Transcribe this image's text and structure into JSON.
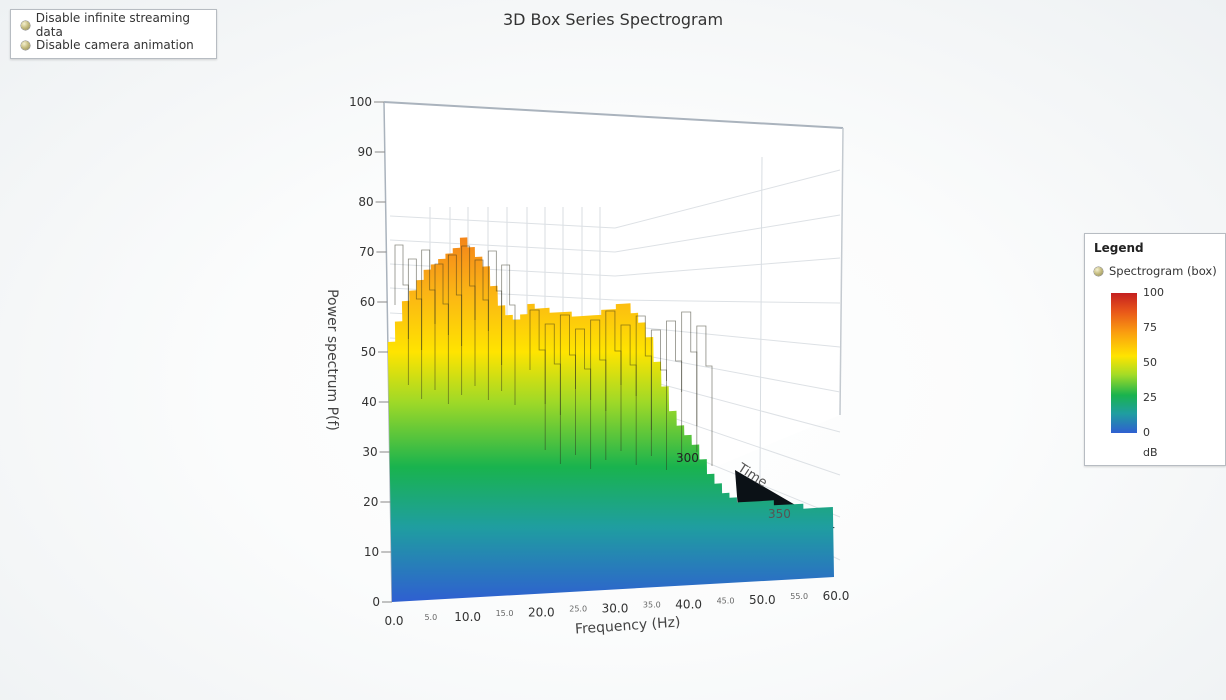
{
  "options": [
    {
      "label": "Disable infinite streaming data"
    },
    {
      "label": "Disable camera animation"
    }
  ],
  "legend": {
    "title": "Legend",
    "entry": "Spectrogram (box)",
    "ticks": [
      "100",
      "75",
      "50",
      "25",
      "0"
    ],
    "unit": "dB"
  },
  "chart_data": {
    "type": "heatmap",
    "title": "3D Box Series Spectrogram",
    "xlabel": "Frequency (Hz)",
    "ylabel": "Power spectrum P(f)",
    "zlabel": "Time",
    "xlim": [
      0,
      60
    ],
    "ylim": [
      0,
      100
    ],
    "y_ticks": [
      "0",
      "10",
      "20",
      "30",
      "40",
      "50",
      "60",
      "70",
      "80",
      "90",
      "100"
    ],
    "x_ticks_major": [
      "0.0",
      "10.0",
      "20.0",
      "30.0",
      "40.0",
      "50.0",
      "60.0"
    ],
    "x_ticks_minor": [
      "5.0",
      "15.0",
      "25.0",
      "35.0",
      "45.0",
      "55.0"
    ],
    "z_ticks": [
      "300",
      "350"
    ],
    "colormap": {
      "unit": "dB",
      "stops": [
        {
          "value": 0,
          "color": "#2f5fd1"
        },
        {
          "value": 25,
          "color": "#19b34e"
        },
        {
          "value": 50,
          "color": "#ffe400"
        },
        {
          "value": 75,
          "color": "#fa9d10"
        },
        {
          "value": 100,
          "color": "#c42020"
        }
      ]
    },
    "front_profile": {
      "frequency": [
        0,
        1,
        2,
        3,
        4,
        5,
        6,
        7,
        8,
        9,
        10,
        11,
        12,
        13,
        14,
        15,
        16,
        17,
        18,
        19,
        20,
        21,
        22,
        23,
        24,
        25,
        26,
        27,
        28,
        29,
        30,
        31,
        32,
        33,
        34,
        35,
        36,
        37,
        38,
        39,
        40,
        41,
        42,
        43,
        44,
        45,
        46,
        47,
        48,
        49,
        50,
        51,
        52,
        53,
        54,
        55,
        56,
        57,
        58,
        59,
        60
      ],
      "power": [
        52,
        56,
        60,
        62,
        64,
        66,
        67,
        68,
        69,
        70,
        72,
        70,
        68,
        66,
        62,
        58,
        56,
        55,
        56,
        58,
        57,
        57,
        56,
        56,
        56,
        55,
        55,
        55,
        55,
        56,
        56,
        57,
        57,
        55,
        53,
        50,
        45,
        40,
        35,
        32,
        30,
        28,
        25,
        22,
        20,
        18,
        17,
        16,
        16,
        16,
        16,
        16,
        15,
        15,
        15,
        15,
        14,
        14,
        14,
        14,
        14
      ]
    }
  }
}
